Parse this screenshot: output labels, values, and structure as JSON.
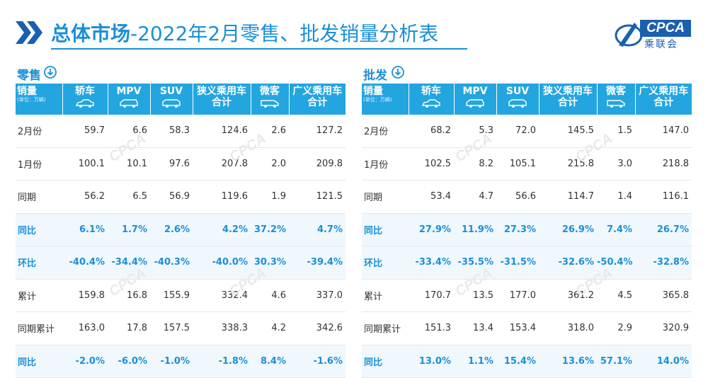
{
  "title": {
    "bold": "总体市场",
    "rest": "-2022年2月零售、批发销量分析表"
  },
  "logo": {
    "abbr": "CPCA",
    "cn": "乘联会"
  },
  "columns": {
    "first": "销量",
    "unit": "(单位：万辆)",
    "c1": "轿车",
    "c2": "MPV",
    "c3": "SUV",
    "c4a": "狭义乘用车",
    "c4b": "合计",
    "c5": "微客",
    "c6a": "广义乘用车",
    "c6b": "合计"
  },
  "retail": {
    "label": "零售",
    "rows": [
      {
        "label": "2月份",
        "v": [
          "59.7",
          "6.6",
          "58.3",
          "124.6",
          "2.6",
          "127.2"
        ],
        "hl": false
      },
      {
        "label": "1月份",
        "v": [
          "100.1",
          "10.1",
          "97.6",
          "207.8",
          "2.0",
          "209.8"
        ],
        "hl": false
      },
      {
        "label": "同期",
        "v": [
          "56.2",
          "6.5",
          "56.9",
          "119.6",
          "1.9",
          "121.5"
        ],
        "hl": false
      },
      {
        "label": "同比",
        "v": [
          "6.1%",
          "1.7%",
          "2.6%",
          "4.2%",
          "37.2%",
          "4.7%"
        ],
        "hl": true
      },
      {
        "label": "环比",
        "v": [
          "-40.4%",
          "-34.4%",
          "-40.3%",
          "-40.0%",
          "30.3%",
          "-39.4%"
        ],
        "hl": true
      },
      {
        "label": "累计",
        "v": [
          "159.8",
          "16.8",
          "155.9",
          "332.4",
          "4.6",
          "337.0"
        ],
        "hl": false
      },
      {
        "label": "同期累计",
        "v": [
          "163.0",
          "17.8",
          "157.5",
          "338.3",
          "4.2",
          "342.6"
        ],
        "hl": false
      },
      {
        "label": "同比",
        "v": [
          "-2.0%",
          "-6.0%",
          "-1.0%",
          "-1.8%",
          "8.4%",
          "-1.6%"
        ],
        "hl": true
      }
    ]
  },
  "wholesale": {
    "label": "批发",
    "rows": [
      {
        "label": "2月份",
        "v": [
          "68.2",
          "5.3",
          "72.0",
          "145.5",
          "1.5",
          "147.0"
        ],
        "hl": false
      },
      {
        "label": "1月份",
        "v": [
          "102.5",
          "8.2",
          "105.1",
          "215.8",
          "3.0",
          "218.8"
        ],
        "hl": false
      },
      {
        "label": "同期",
        "v": [
          "53.4",
          "4.7",
          "56.6",
          "114.7",
          "1.4",
          "116.1"
        ],
        "hl": false
      },
      {
        "label": "同比",
        "v": [
          "27.9%",
          "11.9%",
          "27.3%",
          "26.9%",
          "7.4%",
          "26.7%"
        ],
        "hl": true
      },
      {
        "label": "环比",
        "v": [
          "-33.4%",
          "-35.5%",
          "-31.5%",
          "-32.6%",
          "-50.4%",
          "-32.8%"
        ],
        "hl": true
      },
      {
        "label": "累计",
        "v": [
          "170.7",
          "13.5",
          "177.0",
          "361.2",
          "4.5",
          "365.8"
        ],
        "hl": false
      },
      {
        "label": "同期累计",
        "v": [
          "151.3",
          "13.4",
          "153.4",
          "318.0",
          "2.9",
          "320.9"
        ],
        "hl": false
      },
      {
        "label": "同比",
        "v": [
          "13.0%",
          "1.1%",
          "15.4%",
          "13.6%",
          "57.1%",
          "14.0%"
        ],
        "hl": true
      }
    ]
  },
  "watermark": "CPCA",
  "colors": {
    "accent": "#1a8fd8",
    "header_bg": "#23a5e0",
    "highlight_row_bg": "#f0f8fd",
    "logo_blue": "#1a5fb0"
  },
  "icons": [
    "chevron-right-double-icon",
    "arrow-down-circle-icon",
    "car-icon",
    "mpv-icon",
    "suv-icon",
    "van-icon"
  ]
}
